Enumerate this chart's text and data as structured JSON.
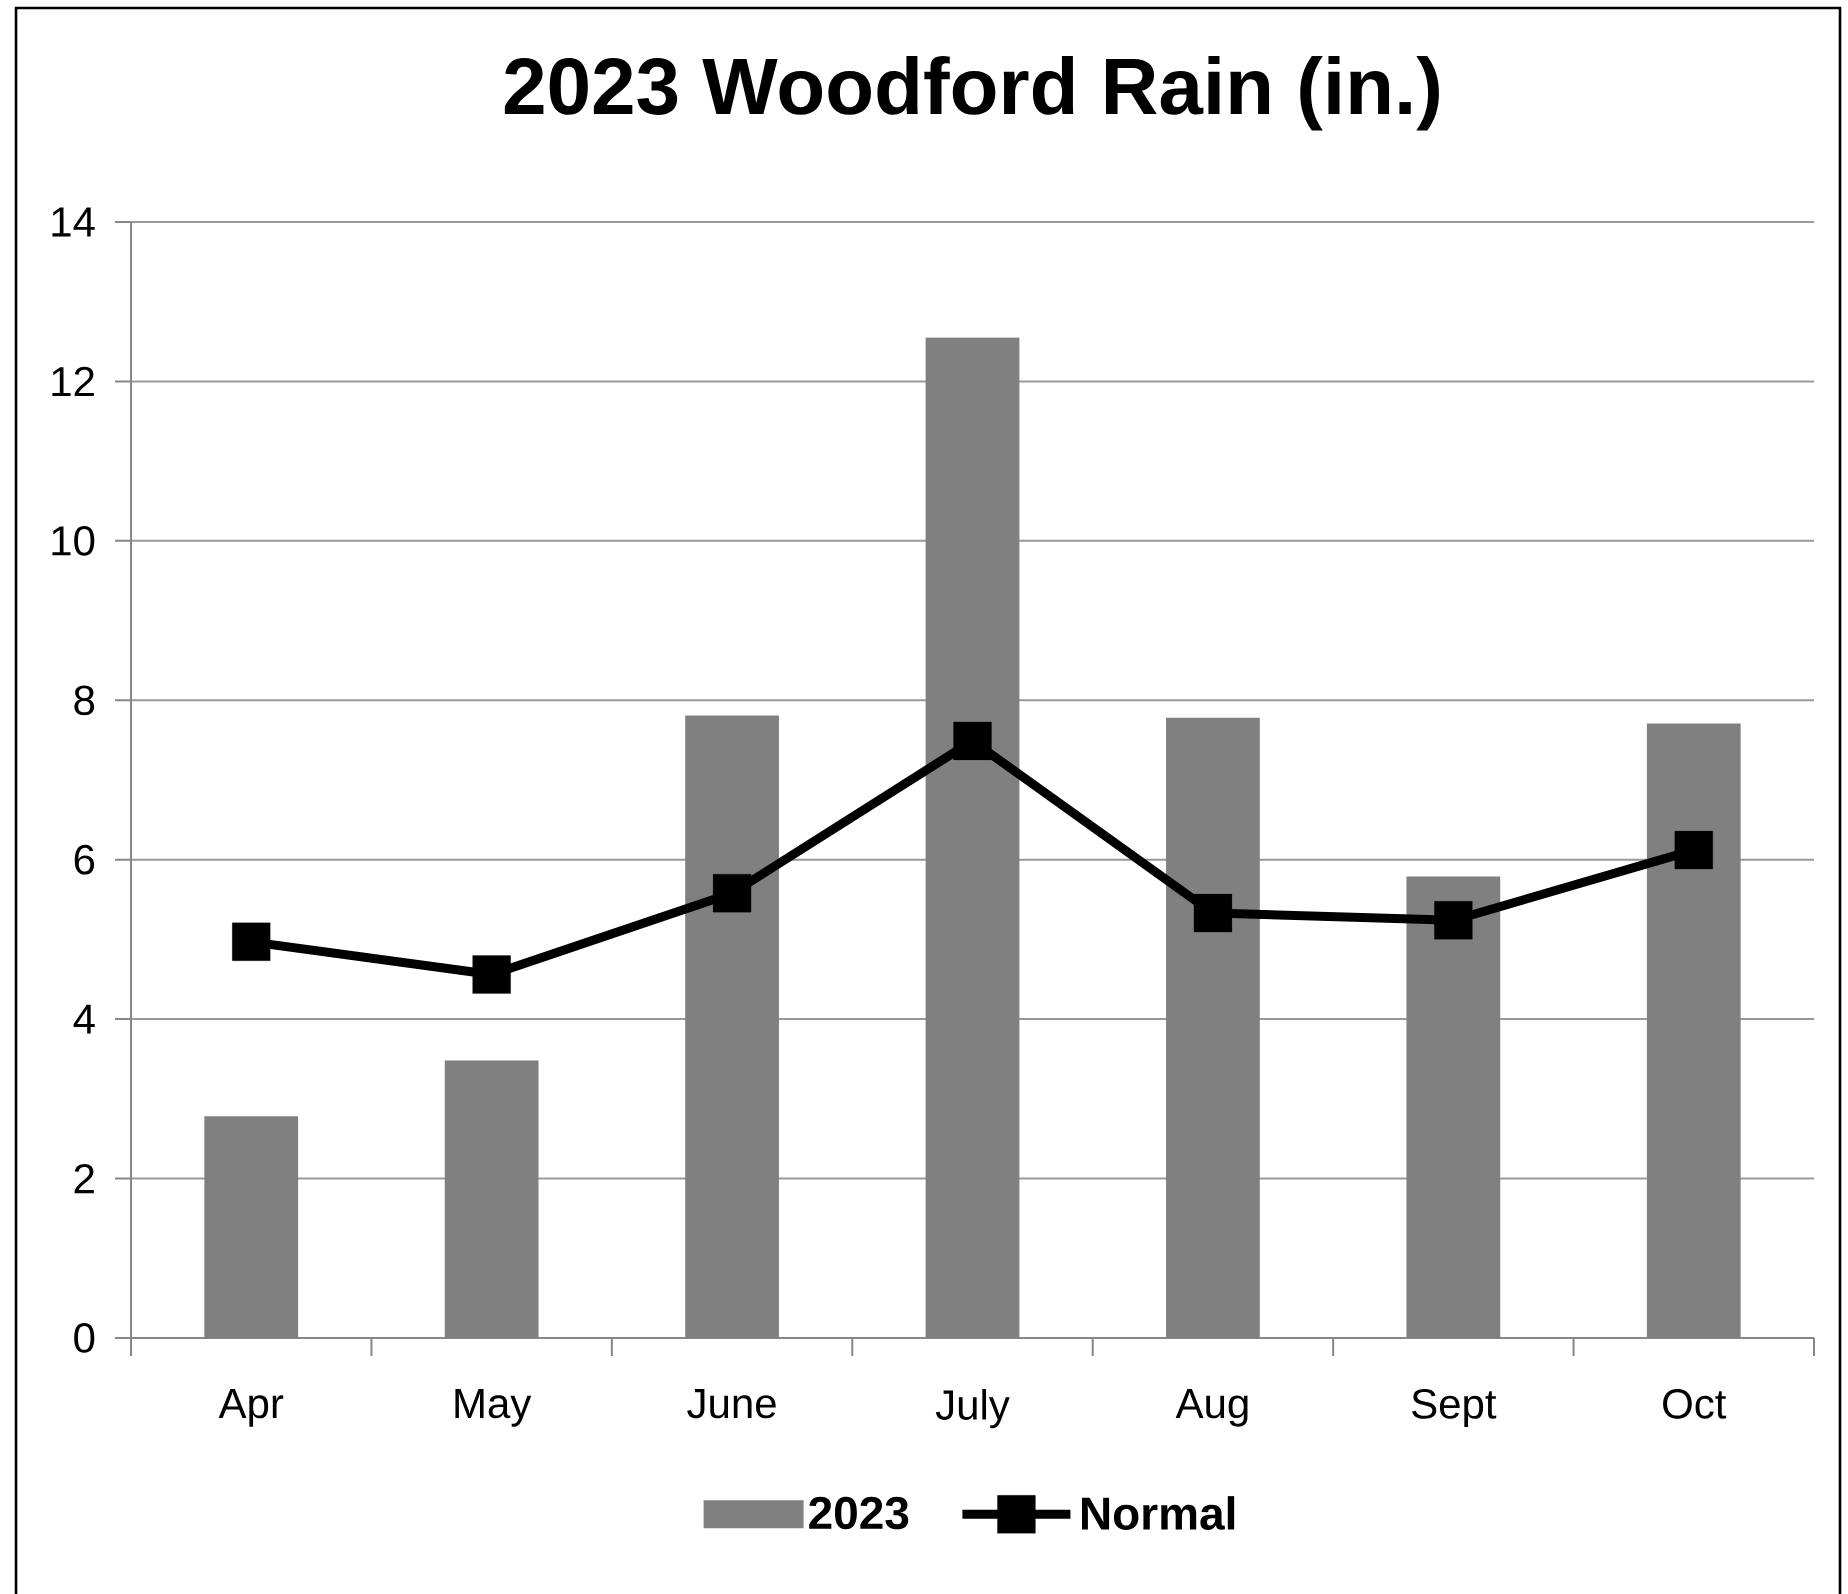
{
  "chart_data": {
    "type": "bar",
    "title": "2023 Woodford Rain (in.)",
    "categories": [
      "Apr",
      "May",
      "June",
      "July",
      "Aug",
      "Sept",
      "Oct"
    ],
    "series": [
      {
        "name": "2023",
        "color": "#808080",
        "values": [
          2.78,
          3.48,
          7.81,
          12.55,
          7.78,
          5.79,
          7.71
        ]
      },
      {
        "name": "Normal",
        "type": "line",
        "color": "#000000",
        "marker": "square",
        "values": [
          4.97,
          4.56,
          5.58,
          7.49,
          5.33,
          5.24,
          6.12
        ]
      }
    ],
    "ylim": [
      0,
      14
    ],
    "yticks": [
      0,
      2,
      4,
      6,
      8,
      10,
      12,
      14
    ],
    "grid": "y",
    "legend": "bottom"
  }
}
